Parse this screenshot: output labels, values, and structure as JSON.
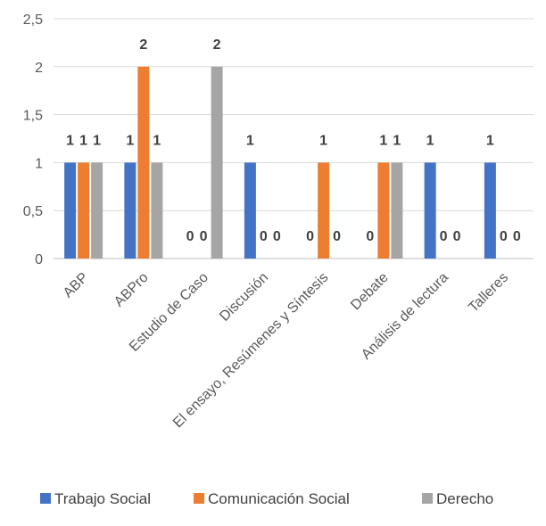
{
  "chart_data": {
    "type": "bar",
    "title": "",
    "xlabel": "",
    "ylabel": "",
    "ylim": [
      0,
      2.5
    ],
    "yticks": [
      "0",
      "0,5",
      "1",
      "1,5",
      "2",
      "2,5"
    ],
    "ytick_values": [
      0,
      0.5,
      1,
      1.5,
      2,
      2.5
    ],
    "grid": true,
    "legend_position": "bottom",
    "categories": [
      "ABP",
      "ABPro",
      "Estudio de Caso",
      "Discusión",
      "El ensayo, Resúmenes y Síntesis",
      "Debate",
      "Análisis de lectura",
      "Talleres"
    ],
    "series": [
      {
        "name": "Trabajo Social",
        "color": "#4472C4",
        "values": [
          1,
          1,
          0,
          1,
          0,
          0,
          1,
          1
        ]
      },
      {
        "name": "Comunicación Social",
        "color": "#ED7D31",
        "values": [
          1,
          2,
          0,
          0,
          1,
          1,
          0,
          0
        ]
      },
      {
        "name": "Derecho",
        "color": "#A5A5A5",
        "values": [
          1,
          1,
          2,
          0,
          0,
          1,
          0,
          0
        ]
      }
    ]
  }
}
